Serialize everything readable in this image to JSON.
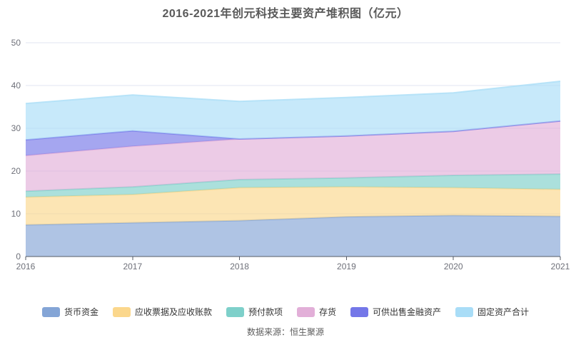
{
  "title": "2016-2021年创元科技主要资产堆积图（亿元）",
  "source_note": "数据来源：恒生聚源",
  "colors": {
    "background": "#ffffff",
    "title_text": "#595959",
    "axis_line": "#565b66",
    "gridline": "#e0e5f0",
    "tick_label": "#6e7079",
    "legend_text": "#333333",
    "source_text": "#5e5e5e"
  },
  "chart_data": {
    "type": "area",
    "stacked": true,
    "title": "2016-2021年创元科技主要资产堆积图（亿元）",
    "x": [
      2016,
      2017,
      2018,
      2019,
      2020,
      2021
    ],
    "series": [
      {
        "name": "货币资金",
        "color": "#84a5d6",
        "values": [
          7.4,
          7.9,
          8.4,
          9.3,
          9.6,
          9.4
        ]
      },
      {
        "name": "应收票据及应收账款",
        "color": "#fbd78c",
        "values": [
          6.5,
          6.6,
          7.7,
          7.0,
          6.5,
          6.3
        ]
      },
      {
        "name": "预付款项",
        "color": "#7ed0ca",
        "values": [
          1.4,
          1.8,
          1.9,
          2.1,
          2.9,
          3.6
        ]
      },
      {
        "name": "存货",
        "color": "#e2afd8",
        "values": [
          8.3,
          9.5,
          9.5,
          9.8,
          10.3,
          12.4
        ]
      },
      {
        "name": "可供出售金融资产",
        "color": "#7477e8",
        "values": [
          3.7,
          3.6,
          0,
          0,
          0,
          0
        ]
      },
      {
        "name": "固定资产合计",
        "color": "#a9ddf7",
        "values": [
          8.5,
          8.4,
          8.8,
          9.0,
          9.0,
          9.3
        ]
      }
    ],
    "xlabel": "",
    "ylabel": "",
    "ylim": [
      0,
      50
    ],
    "y_ticks": [
      0,
      10,
      20,
      30,
      40,
      50
    ],
    "grid": true,
    "legend_position": "bottom",
    "fill_opacity": 0.65,
    "line_opacity": 0.75,
    "line_width": 2
  }
}
